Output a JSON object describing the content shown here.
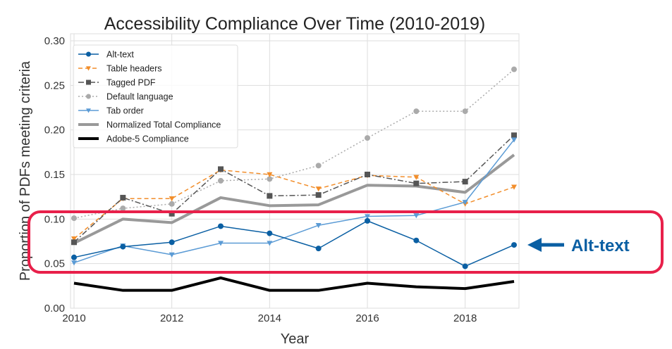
{
  "chart_data": {
    "type": "line",
    "title": "Accessibility Compliance Over Time (2010-2019)",
    "xlabel": "Year",
    "ylabel": "Proportion of PDFs meeting criteria",
    "xlim": [
      2010,
      2019
    ],
    "ylim": [
      0,
      0.3
    ],
    "grid": true,
    "legend_position": "top-left",
    "x": [
      2010,
      2011,
      2012,
      2013,
      2014,
      2015,
      2016,
      2017,
      2018,
      2019
    ],
    "xticks": [
      "2010",
      "2012",
      "2014",
      "2016",
      "2018"
    ],
    "yticks": [
      "0.00",
      "0.05",
      "0.10",
      "0.15",
      "0.20",
      "0.25",
      "0.30"
    ],
    "series": [
      {
        "name": "Alt-text",
        "color": "#0a5fa3",
        "style": "solid",
        "marker": "circle",
        "width": 1.5,
        "values": [
          0.057,
          0.069,
          0.074,
          0.092,
          0.084,
          0.067,
          0.098,
          0.076,
          0.047,
          0.071
        ]
      },
      {
        "name": "Table headers",
        "color": "#f28e2b",
        "style": "dashed",
        "marker": "triangle-down",
        "width": 1.5,
        "values": [
          0.078,
          0.123,
          0.123,
          0.155,
          0.15,
          0.134,
          0.149,
          0.147,
          0.117,
          0.136
        ]
      },
      {
        "name": "Tagged PDF",
        "color": "#555555",
        "style": "dashdot",
        "marker": "square",
        "width": 1.5,
        "values": [
          0.074,
          0.124,
          0.106,
          0.156,
          0.126,
          0.127,
          0.15,
          0.14,
          0.142,
          0.194
        ]
      },
      {
        "name": "Default language",
        "color": "#aaaaaa",
        "style": "dotted",
        "marker": "circle",
        "width": 1.5,
        "values": [
          0.101,
          0.112,
          0.117,
          0.143,
          0.145,
          0.16,
          0.191,
          0.221,
          0.221,
          0.268
        ]
      },
      {
        "name": "Tab order",
        "color": "#5b9bd5",
        "style": "solid",
        "marker": "triangle-down",
        "width": 1.5,
        "values": [
          0.051,
          0.07,
          0.06,
          0.073,
          0.073,
          0.093,
          0.103,
          0.104,
          0.119,
          0.189
        ]
      },
      {
        "name": "Normalized Total Compliance",
        "color": "#999999",
        "style": "solid",
        "marker": "none",
        "width": 4,
        "values": [
          0.073,
          0.1,
          0.096,
          0.124,
          0.115,
          0.116,
          0.138,
          0.137,
          0.13,
          0.172
        ]
      },
      {
        "name": "Adobe-5 Compliance",
        "color": "#000000",
        "style": "solid",
        "marker": "none",
        "width": 4,
        "values": [
          0.028,
          0.02,
          0.02,
          0.034,
          0.02,
          0.02,
          0.028,
          0.024,
          0.022,
          0.03
        ]
      }
    ]
  },
  "annotation": {
    "label": "Alt-text",
    "color": "#0a5fa3",
    "highlight_color": "#e8204a"
  }
}
